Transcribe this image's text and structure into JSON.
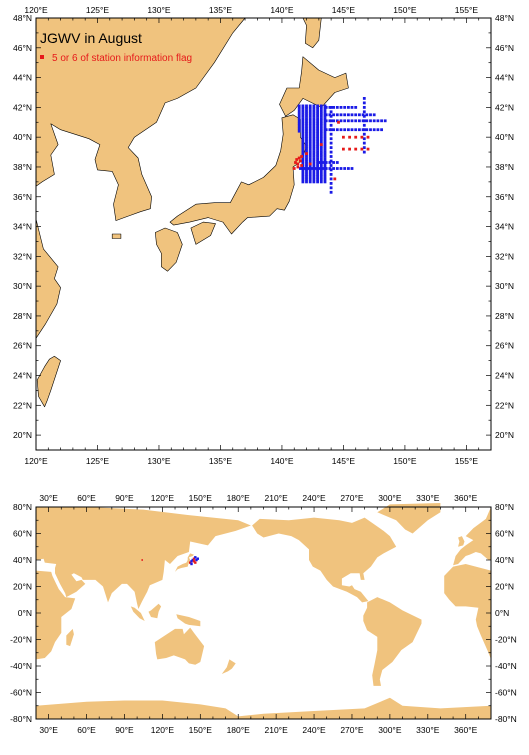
{
  "top_map": {
    "title": "JGWV in August",
    "legend_label": "5 or 6 of station information flag",
    "lon_labels": [
      "120°E",
      "125°E",
      "130°E",
      "135°E",
      "140°E",
      "145°E",
      "150°E",
      "155°E"
    ],
    "lat_labels": [
      "20°N",
      "22°N",
      "24°N",
      "26°N",
      "28°N",
      "30°N",
      "32°N",
      "34°N",
      "36°N",
      "38°N",
      "40°N",
      "42°N",
      "44°N",
      "46°N",
      "48°N"
    ],
    "lon_range": [
      120,
      157
    ],
    "lat_range": [
      19,
      48
    ]
  },
  "bottom_map": {
    "lon_labels": [
      "30°E",
      "60°E",
      "90°E",
      "120°E",
      "150°E",
      "180°E",
      "210°E",
      "240°E",
      "270°E",
      "300°E",
      "330°E",
      "360°E"
    ],
    "lat_labels": [
      "-80°N",
      "-60°N",
      "-40°N",
      "-20°N",
      "0°N",
      "20°N",
      "40°N",
      "60°N",
      "80°N"
    ],
    "lon_range": [
      20,
      380
    ],
    "lat_range": [
      -80,
      80
    ]
  },
  "colors": {
    "land": "#f0c37e",
    "ocean": "#ffffff",
    "station_normal": "#1a1ae6",
    "station_flagged": "#e61a1a",
    "frame": "#000000"
  }
}
